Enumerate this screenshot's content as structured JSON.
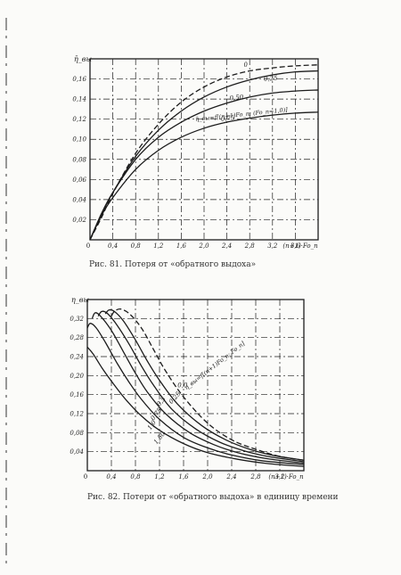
{
  "page": {
    "colors": {
      "paper": "#fbfbf9",
      "ink": "#1c1c1c",
      "grid": "#2a2a2a"
    }
  },
  "chart_data": [
    {
      "type": "line",
      "figure_caption": "Рис. 81. Потеря от «обратного выдоха»",
      "ylabel": "η̄_вы",
      "xlabel": "(n+1)·Fo_п",
      "x_ticks": [
        "0,4",
        "0,8",
        "1,2",
        "1,6",
        "2,0",
        "2,4",
        "2,8",
        "3,2",
        "3,6"
      ],
      "y_ticks": [
        "0,02",
        "0,04",
        "0,06",
        "0,08",
        "0,10",
        "0,12",
        "0,14",
        "0,16"
      ],
      "origin_label": "0",
      "xlim": [
        0,
        4.0
      ],
      "ylim": [
        0,
        0.18
      ],
      "grid": true,
      "annotation": "η̄_вы=f[(n+1)Fo_п; (Fo_п=1,0)]",
      "series": [
        {
          "name": "0",
          "style": "dashed",
          "x": [
            0,
            0.2,
            0.4,
            0.8,
            1.2,
            1.6,
            2.0,
            2.4,
            2.8,
            3.2,
            3.6,
            4.0
          ],
          "y": [
            0,
            0.022,
            0.046,
            0.086,
            0.115,
            0.137,
            0.152,
            0.162,
            0.168,
            0.171,
            0.173,
            0.174
          ]
        },
        {
          "name": "0,25",
          "style": "solid",
          "x": [
            0,
            0.2,
            0.4,
            0.8,
            1.2,
            1.6,
            2.0,
            2.4,
            2.8,
            3.2,
            3.6,
            4.0
          ],
          "y": [
            0,
            0.025,
            0.047,
            0.083,
            0.109,
            0.128,
            0.142,
            0.152,
            0.159,
            0.164,
            0.167,
            0.168
          ]
        },
        {
          "name": "0,50",
          "style": "solid",
          "x": [
            0,
            0.2,
            0.4,
            0.8,
            1.2,
            1.6,
            2.0,
            2.4,
            2.8,
            3.2,
            3.6,
            4.0
          ],
          "y": [
            0,
            0.026,
            0.047,
            0.08,
            0.102,
            0.117,
            0.128,
            0.136,
            0.142,
            0.146,
            0.148,
            0.149
          ]
        },
        {
          "name": "0,75",
          "style": "solid",
          "x": [
            0,
            0.2,
            0.4,
            0.8,
            1.2,
            1.6,
            2.0,
            2.4,
            2.8,
            3.2,
            3.6,
            4.0
          ],
          "y": [
            0,
            0.024,
            0.042,
            0.07,
            0.089,
            0.102,
            0.111,
            0.117,
            0.121,
            0.124,
            0.126,
            0.127
          ]
        }
      ]
    },
    {
      "type": "line",
      "figure_caption": "Рис. 82. Потери от «обратного выдоха» в единицу времени",
      "ylabel": "η_вы",
      "xlabel": "(n+1)·Fo_п",
      "x_ticks": [
        "0,4",
        "0,8",
        "1,2",
        "1,6",
        "2,0",
        "2,4",
        "2,8",
        "3,2"
      ],
      "y_ticks": [
        "0,04",
        "0,08",
        "0,12",
        "0,16",
        "0,20",
        "0,24",
        "0,28",
        "0,32"
      ],
      "origin_label": "0",
      "xlim": [
        0,
        3.6
      ],
      "ylim": [
        0,
        0.36
      ],
      "grid": true,
      "annotation": "η_вы=f[(n+1)Fo_п; Fo_п]",
      "series": [
        {
          "name": "0,0",
          "style": "dashed",
          "x": [
            0.4,
            0.45,
            0.55,
            0.7,
            0.9,
            1.1,
            1.3,
            1.6,
            2.0,
            2.4,
            2.8,
            3.2,
            3.6
          ],
          "y": [
            0.325,
            0.335,
            0.34,
            0.33,
            0.3,
            0.255,
            0.21,
            0.155,
            0.1,
            0.065,
            0.045,
            0.03,
            0.022
          ]
        },
        {
          "name": "0,25",
          "style": "solid",
          "x": [
            0.3,
            0.36,
            0.45,
            0.6,
            0.8,
            1.0,
            1.2,
            1.5,
            1.9,
            2.3,
            2.7,
            3.1,
            3.6
          ],
          "y": [
            0.33,
            0.338,
            0.335,
            0.315,
            0.275,
            0.23,
            0.19,
            0.14,
            0.095,
            0.065,
            0.045,
            0.032,
            0.022
          ]
        },
        {
          "name": "0,5",
          "style": "solid",
          "x": [
            0.18,
            0.24,
            0.34,
            0.5,
            0.7,
            0.9,
            1.1,
            1.4,
            1.8,
            2.2,
            2.6,
            3.0,
            3.6
          ],
          "y": [
            0.325,
            0.335,
            0.33,
            0.305,
            0.265,
            0.22,
            0.18,
            0.13,
            0.088,
            0.06,
            0.042,
            0.03,
            0.019
          ]
        },
        {
          "name": "0,75",
          "style": "solid",
          "x": [
            0.08,
            0.13,
            0.22,
            0.4,
            0.6,
            0.8,
            1.0,
            1.3,
            1.7,
            2.1,
            2.5,
            3.0,
            3.6
          ],
          "y": [
            0.32,
            0.332,
            0.325,
            0.295,
            0.25,
            0.205,
            0.165,
            0.12,
            0.08,
            0.055,
            0.038,
            0.025,
            0.016
          ]
        },
        {
          "name": "1,0",
          "style": "solid",
          "x": [
            0.0,
            0.05,
            0.15,
            0.3,
            0.5,
            0.7,
            0.9,
            1.2,
            1.6,
            2.0,
            2.4,
            2.9,
            3.6
          ],
          "y": [
            0.3,
            0.31,
            0.3,
            0.27,
            0.225,
            0.185,
            0.15,
            0.108,
            0.07,
            0.048,
            0.033,
            0.021,
            0.013
          ]
        },
        {
          "name": "1,50",
          "style": "solid",
          "x": [
            0.0,
            0.1,
            0.25,
            0.45,
            0.65,
            0.9,
            1.2,
            1.6,
            2.0,
            2.5,
            3.0,
            3.6
          ],
          "y": [
            0.26,
            0.245,
            0.215,
            0.18,
            0.148,
            0.115,
            0.085,
            0.057,
            0.038,
            0.024,
            0.015,
            0.009
          ]
        }
      ]
    }
  ]
}
